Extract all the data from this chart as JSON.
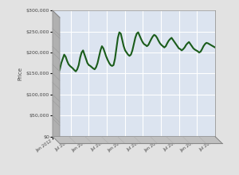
{
  "title": "",
  "ylabel": "Price",
  "ylim": [
    0,
    300000
  ],
  "yticks": [
    0,
    50000,
    100000,
    150000,
    200000,
    250000,
    300000
  ],
  "ytick_labels": [
    "$0",
    "$50,000",
    "$100,000",
    "$150,000",
    "$200,000",
    "$250,000",
    "$300,000"
  ],
  "line_color": "#1a5c1a",
  "line_width": 1.5,
  "bg_panel_color": "#dce4f0",
  "bg_outer_color": "#e2e2e2",
  "left_wall_color": "#aaaaaa",
  "floor_color": "#c8c8c8",
  "grid_color": "#ffffff",
  "tick_labels": [
    "Jan 2012",
    "Jul 2012",
    "Jan 2013",
    "Jul 2013",
    "Jan 2014",
    "Jul 2014",
    "Jan 2015",
    "Jul 2015",
    "Jan 2016",
    "Jul 2016"
  ],
  "prices": [
    170000,
    165000,
    158000,
    150000,
    152000,
    160000,
    175000,
    185000,
    195000,
    190000,
    180000,
    172000,
    168000,
    165000,
    162000,
    158000,
    155000,
    160000,
    170000,
    188000,
    200000,
    205000,
    195000,
    185000,
    175000,
    170000,
    168000,
    165000,
    162000,
    160000,
    165000,
    175000,
    190000,
    205000,
    215000,
    210000,
    200000,
    190000,
    182000,
    175000,
    170000,
    168000,
    170000,
    185000,
    210000,
    235000,
    248000,
    245000,
    230000,
    215000,
    205000,
    200000,
    195000,
    192000,
    195000,
    205000,
    220000,
    235000,
    245000,
    248000,
    240000,
    232000,
    225000,
    220000,
    218000,
    215000,
    218000,
    225000,
    232000,
    238000,
    242000,
    240000,
    235000,
    228000,
    222000,
    218000,
    215000,
    212000,
    215000,
    222000,
    228000,
    232000,
    235000,
    230000,
    225000,
    220000,
    215000,
    210000,
    208000,
    205000,
    208000,
    212000,
    218000,
    222000,
    225000,
    220000,
    215000,
    210000,
    207000,
    205000,
    203000,
    200000,
    202000,
    208000,
    215000,
    220000,
    223000,
    222000,
    220000,
    218000,
    216000,
    214000,
    212000
  ]
}
